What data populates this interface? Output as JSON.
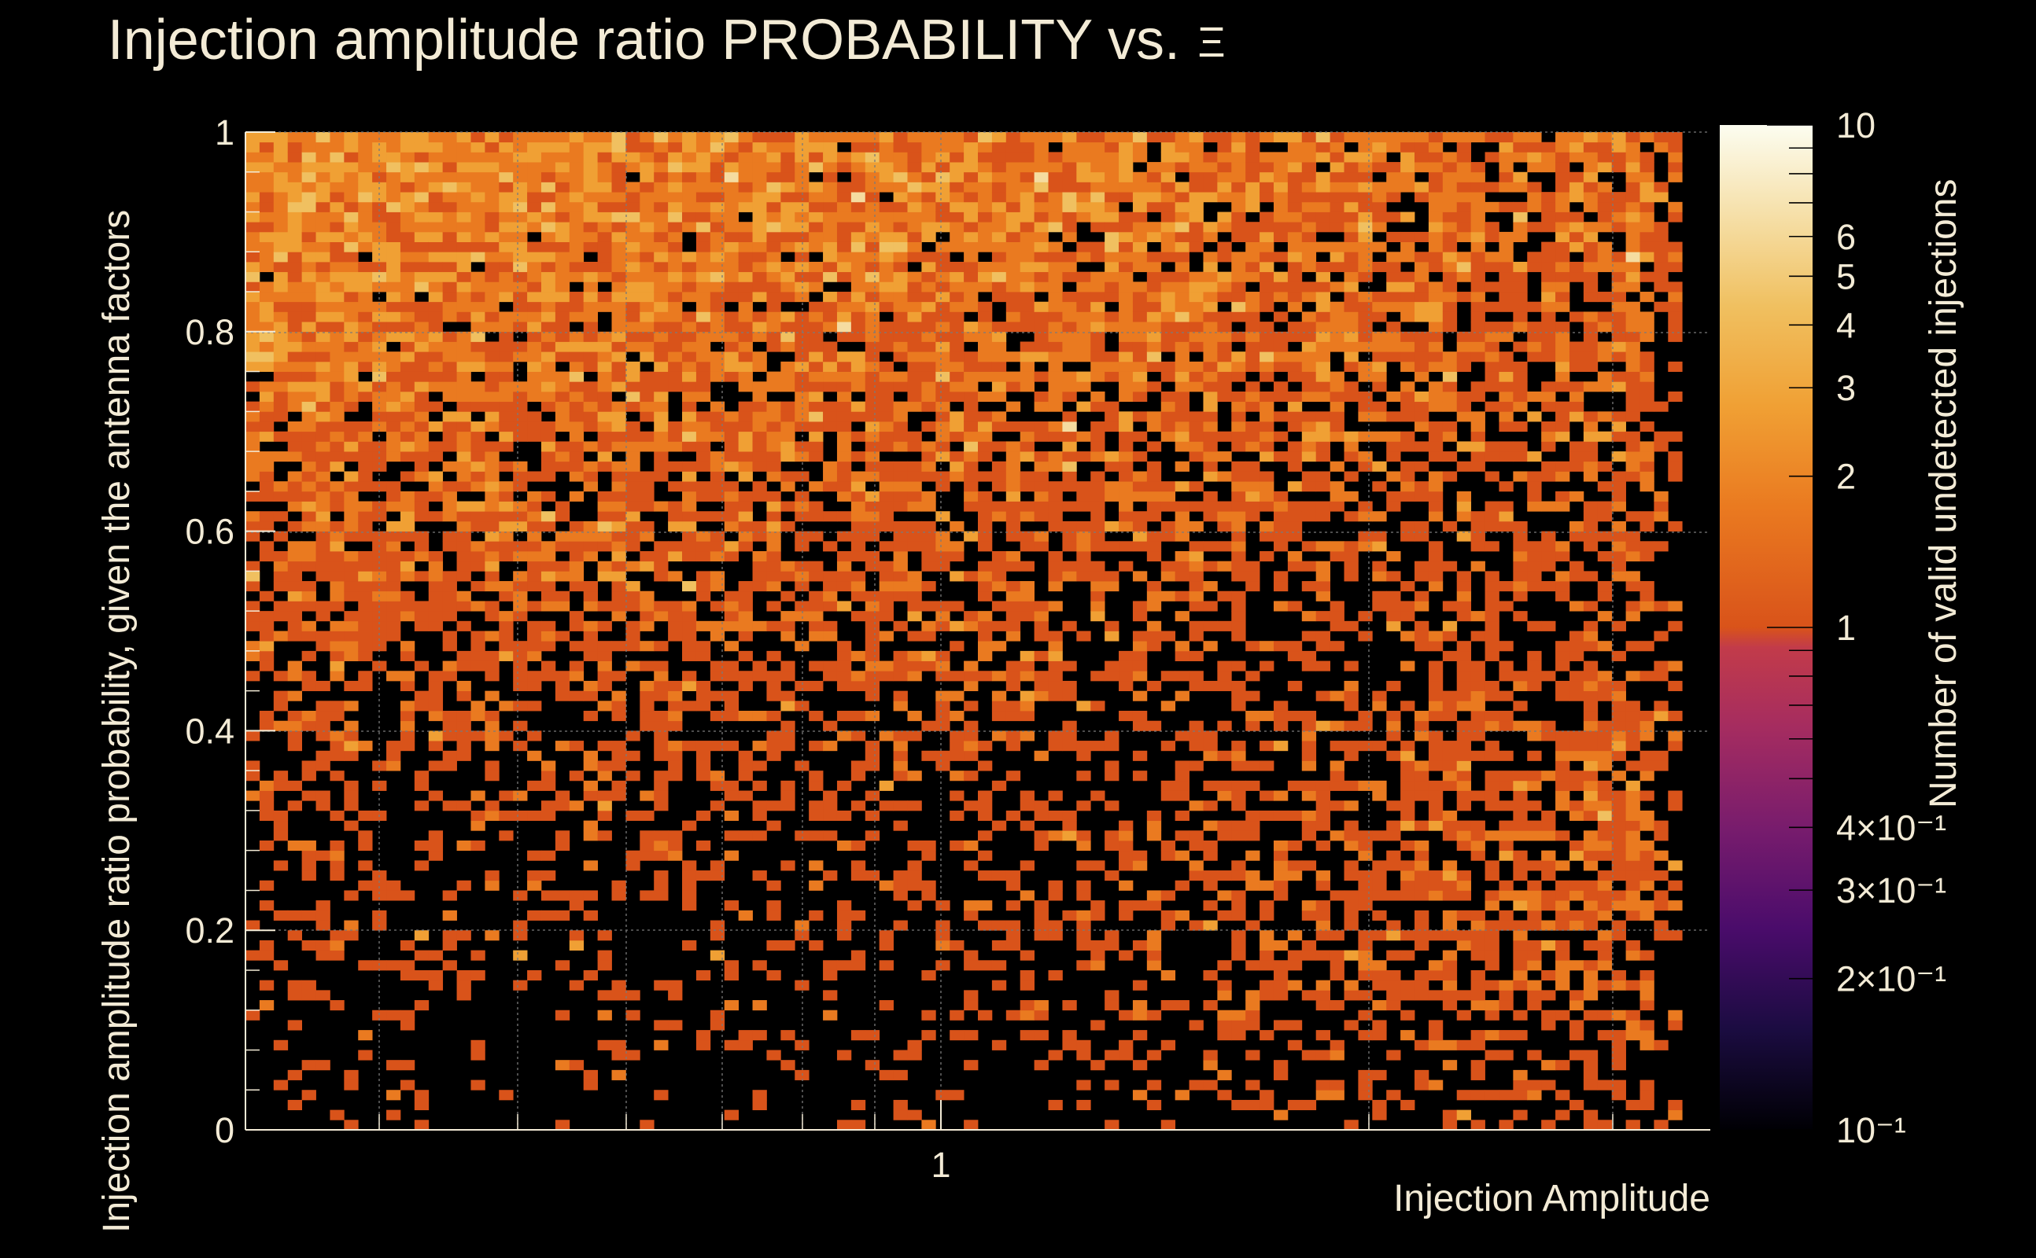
{
  "chart_data": {
    "type": "heatmap",
    "title": "Injection amplitude ratio PROBABILITY vs.",
    "title_symbol": "Ξ",
    "xlabel": "Injection Amplitude",
    "ylabel": "Injection amplitude ratio probability, given the antenna factors",
    "zlabel": "Number of valid undetected injections",
    "x_scale": "log",
    "x_tick_labels": [
      "1"
    ],
    "y_range": [
      0,
      1
    ],
    "y_tick_labels": [
      "0",
      "0.2",
      "0.4",
      "0.6",
      "0.8",
      "1"
    ],
    "z_scale": "log",
    "z_range": [
      0.1,
      10
    ],
    "z_tick_labels": [
      "10",
      "6",
      "5",
      "4",
      "3",
      "2",
      "1",
      "4×10⁻¹",
      "3×10⁻¹",
      "2×10⁻¹",
      "10⁻¹"
    ],
    "grid": true,
    "nx_bins": 104,
    "ny_bins": 100,
    "bin_value_levels": [
      1,
      2,
      3,
      4,
      5
    ],
    "empty_bins_color": "#000000"
  },
  "colors": {
    "background": "#000000",
    "text": "#f3ebd6",
    "grid": "#7a7a7a",
    "colormap": [
      "#000004",
      "#1b0c41",
      "#4a0c6b",
      "#781c6d",
      "#a52c60",
      "#cf4446",
      "#d9531a",
      "#f08820",
      "#f0a838",
      "#f3c97c",
      "#fcfdf0"
    ]
  }
}
